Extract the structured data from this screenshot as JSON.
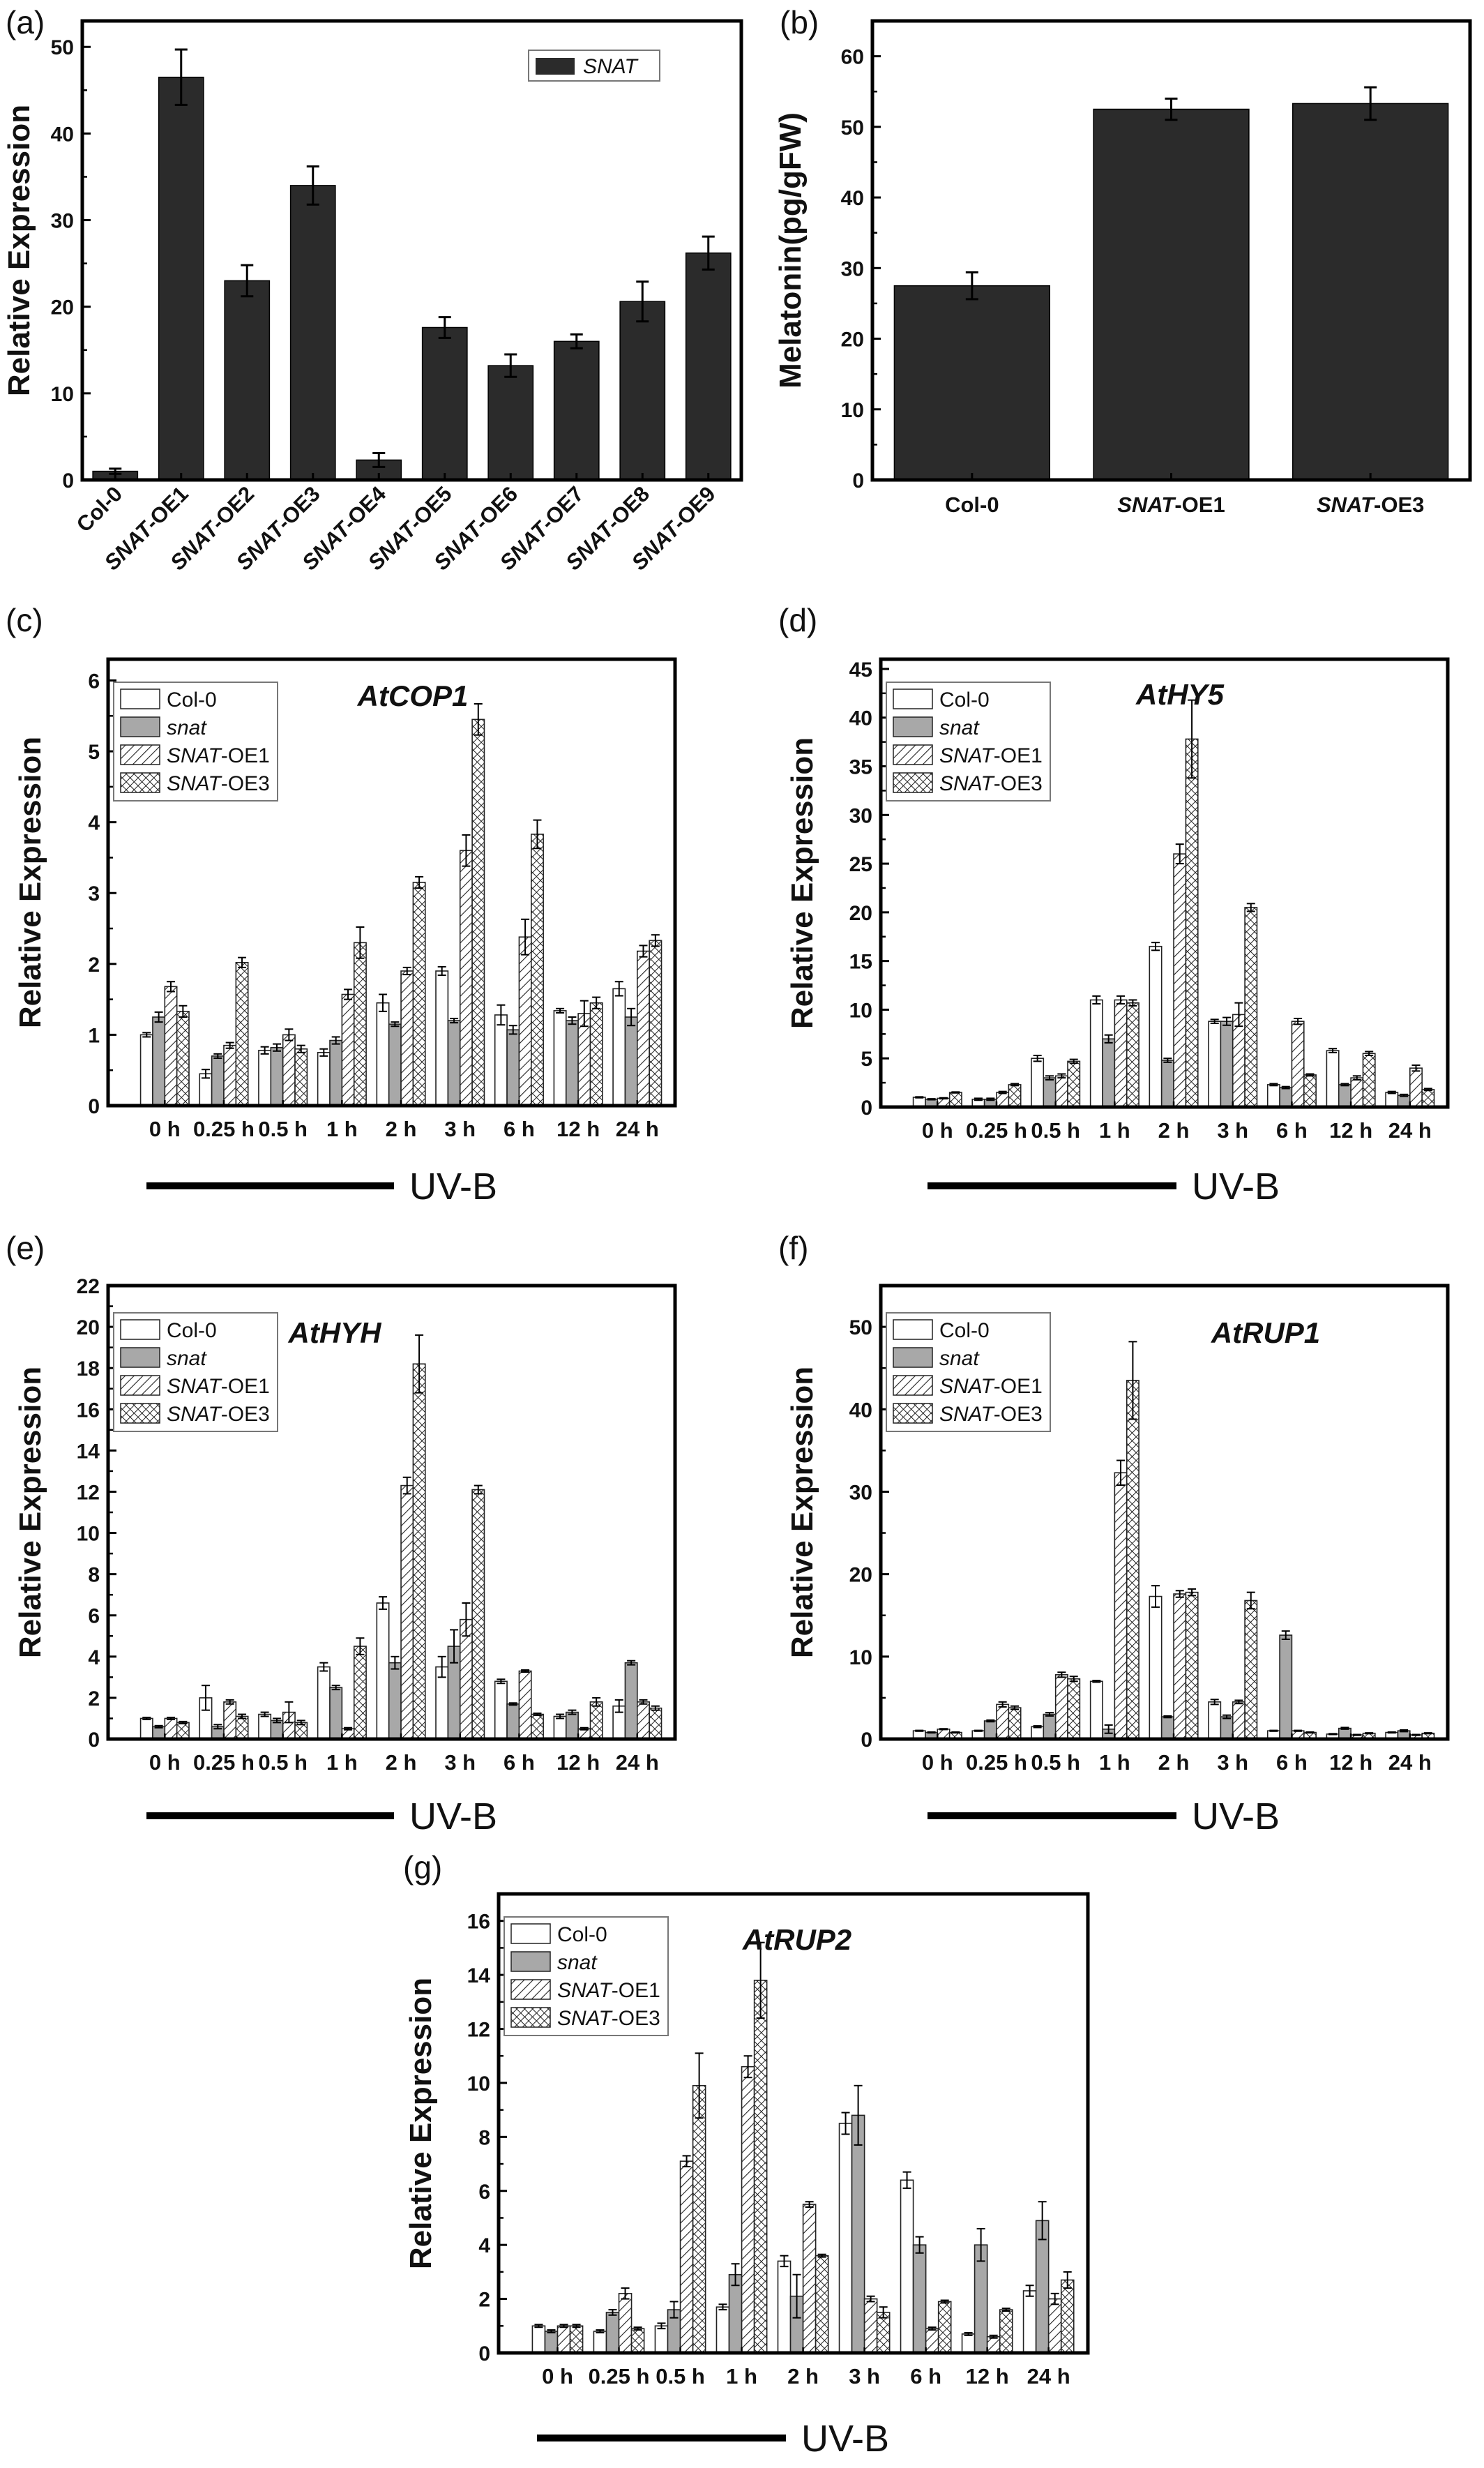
{
  "chart_data": [
    {
      "id": "a",
      "panel_label": "(a)",
      "type": "bar",
      "ylabel": "Relative Expression",
      "ylim": [
        0,
        53
      ],
      "yticks": [
        0,
        10,
        20,
        30,
        40,
        50
      ],
      "legend": [
        "SNAT"
      ],
      "legend_position": "top-right",
      "categories": [
        "Col-0",
        "SNAT-OE1",
        "SNAT-OE2",
        "SNAT-OE3",
        "SNAT-OE4",
        "SNAT-OE5",
        "SNAT-OE6",
        "SNAT-OE7",
        "SNAT-OE8",
        "SNAT-OE9"
      ],
      "series": [
        {
          "name": "SNAT",
          "color": "#2b2b2b",
          "values": [
            1,
            46.5,
            23,
            34,
            2.3,
            17.6,
            13.2,
            16,
            20.6,
            26.2
          ],
          "errors": [
            0.3,
            3.2,
            1.8,
            2.2,
            0.8,
            1.2,
            1.3,
            0.8,
            2.3,
            1.9
          ]
        }
      ]
    },
    {
      "id": "b",
      "panel_label": "(b)",
      "type": "bar",
      "ylabel": "Melatonin(pg/gFW)",
      "ylim": [
        0,
        65
      ],
      "yticks": [
        0,
        10,
        20,
        30,
        40,
        50,
        60
      ],
      "categories": [
        "Col-0",
        "SNAT-OE1",
        "SNAT-OE3"
      ],
      "series": [
        {
          "name": "",
          "color": "#2b2b2b",
          "values": [
            27.5,
            52.5,
            53.3
          ],
          "errors": [
            1.9,
            1.5,
            2.3
          ]
        }
      ]
    },
    {
      "id": "c",
      "panel_label": "(c)",
      "type": "bar",
      "title": "AtCOP1",
      "ylabel": "Relative Expression",
      "ylim": [
        0,
        6.3
      ],
      "yticks": [
        0,
        1,
        2,
        3,
        4,
        5,
        6
      ],
      "categories": [
        "0 h",
        "0.25 h",
        "0.5 h",
        "1 h",
        "2 h",
        "3 h",
        "6 h",
        "12 h",
        "24 h"
      ],
      "xlabel_bar": "UV-B",
      "legend": [
        "Col-0",
        "snat",
        "SNAT-OE1",
        "SNAT-OE3"
      ],
      "legend_position": "top-left",
      "series": [
        {
          "name": "Col-0",
          "values": [
            1.0,
            0.45,
            0.78,
            0.75,
            1.45,
            1.9,
            1.28,
            1.34,
            1.65
          ],
          "errors": [
            0.03,
            0.06,
            0.05,
            0.05,
            0.12,
            0.06,
            0.14,
            0.03,
            0.1
          ]
        },
        {
          "name": "snat",
          "values": [
            1.25,
            0.7,
            0.82,
            0.92,
            1.15,
            1.2,
            1.07,
            1.2,
            1.25
          ],
          "errors": [
            0.07,
            0.03,
            0.05,
            0.05,
            0.03,
            0.03,
            0.06,
            0.05,
            0.12
          ]
        },
        {
          "name": "SNAT-OE1",
          "values": [
            1.68,
            0.85,
            1.0,
            1.57,
            1.9,
            3.6,
            2.38,
            1.3,
            2.18
          ],
          "errors": [
            0.07,
            0.04,
            0.08,
            0.07,
            0.05,
            0.22,
            0.25,
            0.18,
            0.08
          ]
        },
        {
          "name": "SNAT-OE3",
          "values": [
            1.33,
            2.02,
            0.8,
            2.3,
            3.15,
            5.45,
            3.83,
            1.45,
            2.33
          ],
          "errors": [
            0.08,
            0.07,
            0.05,
            0.22,
            0.08,
            0.22,
            0.2,
            0.08,
            0.08
          ]
        }
      ]
    },
    {
      "id": "d",
      "panel_label": "(d)",
      "type": "bar",
      "title": "AtHY5",
      "ylabel": "Relative Expression",
      "ylim": [
        0,
        46
      ],
      "yticks": [
        0,
        5,
        10,
        15,
        20,
        25,
        30,
        35,
        40,
        45
      ],
      "categories": [
        "0 h",
        "0.25 h",
        "0.5 h",
        "1 h",
        "2 h",
        "3 h",
        "6 h",
        "12 h",
        "24 h"
      ],
      "xlabel_bar": "UV-B",
      "legend": [
        "Col-0",
        "snat",
        "SNAT-OE1",
        "SNAT-OE3"
      ],
      "legend_position": "top-left",
      "series": [
        {
          "name": "Col-0",
          "values": [
            1.0,
            0.8,
            5.0,
            11.0,
            16.5,
            8.8,
            2.3,
            5.8,
            1.5
          ],
          "errors": [
            0.05,
            0.1,
            0.3,
            0.4,
            0.4,
            0.2,
            0.1,
            0.2,
            0.1
          ]
        },
        {
          "name": "snat",
          "values": [
            0.8,
            0.8,
            3.0,
            7.0,
            4.8,
            8.8,
            2.0,
            2.3,
            1.2
          ],
          "errors": [
            0.05,
            0.1,
            0.2,
            0.4,
            0.2,
            0.4,
            0.1,
            0.1,
            0.1
          ]
        },
        {
          "name": "SNAT-OE1",
          "values": [
            0.9,
            1.5,
            3.2,
            11.0,
            26.0,
            9.5,
            8.8,
            3.0,
            4.0
          ],
          "errors": [
            0.05,
            0.1,
            0.2,
            0.4,
            1.0,
            1.2,
            0.3,
            0.2,
            0.3
          ]
        },
        {
          "name": "SNAT-OE3",
          "values": [
            1.5,
            2.3,
            4.7,
            10.7,
            37.8,
            20.5,
            3.3,
            5.5,
            1.8
          ],
          "errors": [
            0.05,
            0.1,
            0.2,
            0.3,
            4.0,
            0.4,
            0.1,
            0.2,
            0.1
          ]
        }
      ]
    },
    {
      "id": "e",
      "panel_label": "(e)",
      "type": "bar",
      "title": "AtHYH",
      "ylabel": "Relative Expression",
      "ylim": [
        0,
        22
      ],
      "yticks": [
        0,
        2,
        4,
        6,
        8,
        10,
        12,
        14,
        16,
        18,
        20,
        22
      ],
      "categories": [
        "0 h",
        "0.25 h",
        "0.5 h",
        "1 h",
        "2 h",
        "3 h",
        "6 h",
        "12 h",
        "24 h"
      ],
      "xlabel_bar": "UV-B",
      "legend": [
        "Col-0",
        "snat",
        "SNAT-OE1",
        "SNAT-OE3"
      ],
      "legend_position": "top-left",
      "series": [
        {
          "name": "Col-0",
          "values": [
            1.0,
            2.0,
            1.2,
            3.5,
            6.6,
            3.5,
            2.8,
            1.1,
            1.6
          ],
          "errors": [
            0.05,
            0.6,
            0.1,
            0.2,
            0.3,
            0.5,
            0.1,
            0.1,
            0.3
          ]
        },
        {
          "name": "snat",
          "values": [
            0.6,
            0.6,
            0.9,
            2.5,
            3.7,
            4.5,
            1.7,
            1.3,
            3.7
          ],
          "errors": [
            0.05,
            0.1,
            0.1,
            0.1,
            0.3,
            0.8,
            0.05,
            0.1,
            0.1
          ]
        },
        {
          "name": "SNAT-OE1",
          "values": [
            1.0,
            1.8,
            1.3,
            0.5,
            12.3,
            5.8,
            3.3,
            0.5,
            1.8
          ],
          "errors": [
            0.05,
            0.1,
            0.5,
            0.05,
            0.4,
            0.8,
            0.05,
            0.05,
            0.1
          ]
        },
        {
          "name": "SNAT-OE3",
          "values": [
            0.8,
            1.1,
            0.8,
            4.5,
            18.2,
            12.1,
            1.2,
            1.8,
            1.5
          ],
          "errors": [
            0.05,
            0.1,
            0.1,
            0.4,
            1.4,
            0.2,
            0.05,
            0.2,
            0.1
          ]
        }
      ]
    },
    {
      "id": "f",
      "panel_label": "(f)",
      "type": "bar",
      "title": "AtRUP1",
      "ylabel": "Relative Expression",
      "ylim": [
        0,
        55
      ],
      "yticks": [
        0,
        10,
        20,
        30,
        40,
        50
      ],
      "categories": [
        "0 h",
        "0.25 h",
        "0.5 h",
        "1 h",
        "2 h",
        "3 h",
        "6 h",
        "12 h",
        "24 h"
      ],
      "xlabel_bar": "UV-B",
      "legend": [
        "Col-0",
        "snat",
        "SNAT-OE1",
        "SNAT-OE3"
      ],
      "legend_position": "top-left",
      "series": [
        {
          "name": "Col-0",
          "values": [
            1.0,
            1.0,
            1.5,
            7.0,
            17.3,
            4.5,
            1.0,
            0.6,
            0.8
          ],
          "errors": [
            0.05,
            0.05,
            0.1,
            0.1,
            1.3,
            0.3,
            0.05,
            0.05,
            0.05
          ]
        },
        {
          "name": "snat",
          "values": [
            0.8,
            2.2,
            3.0,
            1.2,
            2.7,
            2.7,
            12.6,
            1.3,
            1.0
          ],
          "errors": [
            0.05,
            0.1,
            0.2,
            0.5,
            0.1,
            0.2,
            0.5,
            0.1,
            0.1
          ]
        },
        {
          "name": "SNAT-OE1",
          "values": [
            1.2,
            4.2,
            7.8,
            32.3,
            17.6,
            4.5,
            1.0,
            0.5,
            0.5
          ],
          "errors": [
            0.05,
            0.3,
            0.3,
            1.5,
            0.4,
            0.2,
            0.05,
            0.05,
            0.05
          ]
        },
        {
          "name": "SNAT-OE3",
          "values": [
            0.8,
            3.8,
            7.3,
            43.5,
            17.8,
            16.8,
            0.8,
            0.7,
            0.7
          ],
          "errors": [
            0.05,
            0.2,
            0.3,
            4.7,
            0.4,
            1.0,
            0.05,
            0.05,
            0.05
          ]
        }
      ]
    },
    {
      "id": "g",
      "panel_label": "(g)",
      "type": "bar",
      "title": "AtRUP2",
      "ylabel": "Relative Expression",
      "ylim": [
        0,
        17
      ],
      "yticks": [
        0,
        2,
        4,
        6,
        8,
        10,
        12,
        14,
        16
      ],
      "categories": [
        "0 h",
        "0.25 h",
        "0.5 h",
        "1 h",
        "2 h",
        "3 h",
        "6 h",
        "12 h",
        "24 h"
      ],
      "xlabel_bar": "UV-B",
      "legend": [
        "Col-0",
        "snat",
        "SNAT-OE1",
        "SNAT-OE3"
      ],
      "legend_position": "top-left",
      "series": [
        {
          "name": "Col-0",
          "values": [
            1.0,
            0.8,
            1.0,
            1.7,
            3.4,
            8.5,
            6.4,
            0.7,
            2.3
          ],
          "errors": [
            0.05,
            0.05,
            0.1,
            0.1,
            0.2,
            0.4,
            0.3,
            0.05,
            0.2
          ]
        },
        {
          "name": "snat",
          "values": [
            0.8,
            1.5,
            1.6,
            2.9,
            2.1,
            8.8,
            4.0,
            4.0,
            4.9
          ],
          "errors": [
            0.05,
            0.1,
            0.3,
            0.4,
            0.8,
            1.1,
            0.3,
            0.6,
            0.7
          ]
        },
        {
          "name": "SNAT-OE1",
          "values": [
            1.0,
            2.2,
            7.1,
            10.6,
            5.5,
            2.0,
            0.9,
            0.6,
            2.0
          ],
          "errors": [
            0.05,
            0.2,
            0.2,
            0.4,
            0.1,
            0.1,
            0.05,
            0.05,
            0.2
          ]
        },
        {
          "name": "SNAT-OE3",
          "values": [
            1.0,
            0.9,
            9.9,
            13.8,
            3.6,
            1.5,
            1.9,
            1.6,
            2.7
          ],
          "errors": [
            0.05,
            0.05,
            1.2,
            1.4,
            0.05,
            0.2,
            0.05,
            0.05,
            0.3
          ]
        }
      ]
    }
  ],
  "series_styles": {
    "Col-0": {
      "fill": "#ffffff",
      "pattern": "none"
    },
    "snat": {
      "fill": "#a8a8a8",
      "pattern": "none"
    },
    "SNAT-OE1": {
      "fill": "#ffffff",
      "pattern": "diagonal-hatch"
    },
    "SNAT-OE3": {
      "fill": "#ffffff",
      "pattern": "crosshatch"
    }
  },
  "colors": {
    "dark_bar": "#2b2b2b",
    "axis": "#000000"
  }
}
